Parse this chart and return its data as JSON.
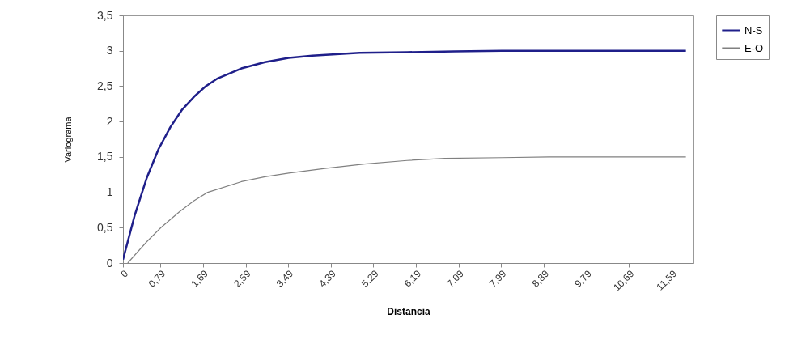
{
  "chart_data": {
    "type": "line",
    "xlabel": "Distancia",
    "ylabel": "Variograma",
    "xlim": [
      0,
      12.05
    ],
    "ylim": [
      0,
      3.5
    ],
    "xticks": [
      0,
      {
        "value": 0.79,
        "label": "0,79"
      },
      {
        "value": 1.69,
        "label": "1,69"
      },
      {
        "value": 2.59,
        "label": "2,59"
      },
      {
        "value": 3.49,
        "label": "3,49"
      },
      {
        "value": 4.39,
        "label": "4,39"
      },
      {
        "value": 5.29,
        "label": "5,29"
      },
      {
        "value": 6.19,
        "label": "6,19"
      },
      {
        "value": 7.09,
        "label": "7,09"
      },
      {
        "value": 7.99,
        "label": "7,99"
      },
      {
        "value": 8.89,
        "label": "8,89"
      },
      {
        "value": 9.79,
        "label": "9,79"
      },
      {
        "value": 10.69,
        "label": "10,69"
      },
      {
        "value": 11.59,
        "label": "11,59"
      }
    ],
    "yticks": [
      0,
      {
        "value": 0.5,
        "label": "0,5"
      },
      1,
      {
        "value": 1.5,
        "label": "1,5"
      },
      2,
      {
        "value": 2.5,
        "label": "2,5"
      },
      3,
      {
        "value": 3.5,
        "label": "3,5"
      }
    ],
    "grid": false,
    "legend": "right",
    "marker": "none",
    "series": [
      {
        "name": "N-S",
        "color": "#1f1f8a",
        "x": [
          0,
          0.25,
          0.5,
          0.75,
          1,
          1.25,
          1.5,
          1.75,
          2,
          2.5,
          3,
          3.5,
          4,
          4.5,
          5,
          6,
          7,
          8,
          9,
          10,
          11,
          11.89
        ],
        "values": [
          0.05,
          0.68,
          1.2,
          1.61,
          1.92,
          2.17,
          2.35,
          2.5,
          2.61,
          2.75,
          2.84,
          2.9,
          2.93,
          2.95,
          2.97,
          2.98,
          2.99,
          3,
          3,
          3,
          3,
          3
        ]
      },
      {
        "name": "E-O",
        "color": "#808080",
        "x": [
          0.1,
          0.5,
          0.8,
          1.2,
          1.5,
          1.79,
          2.5,
          3,
          3.5,
          4.3,
          5.1,
          6,
          6.8,
          8,
          9,
          10,
          11,
          11.89
        ],
        "values": [
          0,
          0.3,
          0.5,
          0.73,
          0.88,
          1.0,
          1.15,
          1.22,
          1.27,
          1.34,
          1.4,
          1.45,
          1.48,
          1.49,
          1.5,
          1.5,
          1.5,
          1.5
        ]
      }
    ]
  }
}
